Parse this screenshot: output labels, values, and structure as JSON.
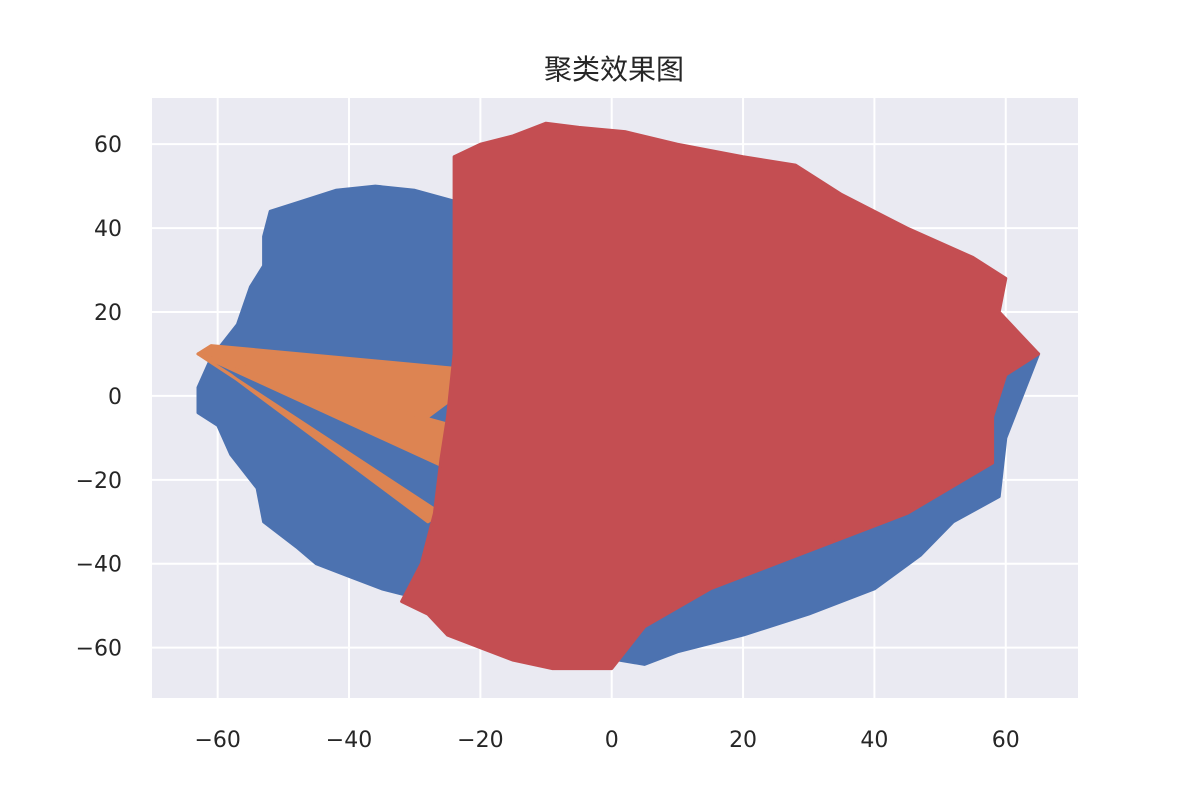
{
  "chart_data": {
    "type": "area",
    "title": "聚类效果图",
    "xlabel": "",
    "ylabel": "",
    "xlim": [
      -70,
      71
    ],
    "ylim": [
      -72,
      71
    ],
    "grid": true,
    "style": "seaborn-darkgrid",
    "x_ticks": [
      -60,
      -40,
      -20,
      0,
      20,
      40,
      60
    ],
    "y_ticks": [
      -60,
      -40,
      -20,
      0,
      20,
      40,
      60
    ],
    "x_tick_labels": [
      "−60",
      "−40",
      "−20",
      "0",
      "20",
      "40",
      "60"
    ],
    "y_tick_labels": [
      "−60",
      "−40",
      "−20",
      "0",
      "20",
      "40",
      "60"
    ],
    "colors": {
      "background": "#eaeaf2",
      "grid": "#ffffff",
      "cluster_0": "#4c72b0",
      "cluster_1": "#dd8452",
      "cluster_2": "#c44e52"
    },
    "series": [
      {
        "color": "#4c72b0",
        "polygons": [
          [
            [
              -63,
              2
            ],
            [
              -61,
              9
            ],
            [
              -57,
              17
            ],
            [
              -55,
              26
            ],
            [
              -53,
              31
            ],
            [
              -53,
              38
            ],
            [
              -52,
              44
            ],
            [
              -48,
              46
            ],
            [
              -42,
              49
            ],
            [
              -36,
              50
            ],
            [
              -30,
              49
            ],
            [
              -23,
              46
            ],
            [
              -15,
              44
            ],
            [
              0,
              42
            ],
            [
              20,
              38
            ],
            [
              40,
              28
            ],
            [
              55,
              20
            ],
            [
              62,
              14
            ],
            [
              65,
              10
            ],
            [
              63,
              2
            ],
            [
              60,
              -10
            ],
            [
              59,
              -24
            ],
            [
              52,
              -30
            ],
            [
              47,
              -38
            ],
            [
              40,
              -46
            ],
            [
              30,
              -52
            ],
            [
              20,
              -57
            ],
            [
              10,
              -61
            ],
            [
              5,
              -64
            ],
            [
              -10,
              -60
            ],
            [
              -25,
              -50
            ],
            [
              -35,
              -46
            ],
            [
              -40,
              -43
            ],
            [
              -45,
              -40
            ],
            [
              -48,
              -36
            ],
            [
              -53,
              -30
            ],
            [
              -54,
              -22
            ],
            [
              -58,
              -14
            ],
            [
              -60,
              -7
            ],
            [
              -63,
              -4
            ]
          ]
        ]
      },
      {
        "color": "#dd8452",
        "polygons": [
          [
            [
              -63,
              10
            ],
            [
              -61,
              12
            ],
            [
              -20,
              6
            ],
            [
              -22,
              2
            ],
            [
              -28,
              -5
            ]
          ],
          [
            [
              -63,
              10
            ],
            [
              -57,
              7
            ],
            [
              -22,
              -8
            ],
            [
              -24,
              -18
            ]
          ],
          [
            [
              -63,
              10
            ],
            [
              -58,
              5
            ],
            [
              -28,
              -30
            ],
            [
              -26,
              -28
            ]
          ]
        ]
      },
      {
        "color": "#c44e52",
        "polygons": [
          [
            [
              -24,
              57
            ],
            [
              -20,
              60
            ],
            [
              -15,
              62
            ],
            [
              -10,
              65
            ],
            [
              -5,
              64
            ],
            [
              2,
              63
            ],
            [
              10,
              60
            ],
            [
              20,
              57
            ],
            [
              28,
              55
            ],
            [
              35,
              48
            ],
            [
              45,
              40
            ],
            [
              55,
              33
            ],
            [
              60,
              28
            ],
            [
              59,
              20
            ],
            [
              62,
              15
            ],
            [
              65,
              10
            ],
            [
              60,
              5
            ],
            [
              58,
              -5
            ],
            [
              58,
              -16
            ],
            [
              45,
              -28
            ],
            [
              30,
              -37
            ],
            [
              15,
              -46
            ],
            [
              5,
              -55
            ],
            [
              0,
              -65
            ],
            [
              -3,
              -65
            ],
            [
              -9,
              -65
            ],
            [
              -15,
              -63
            ],
            [
              -20,
              -60
            ],
            [
              -25,
              -57
            ],
            [
              -28,
              -52
            ],
            [
              -32,
              -49
            ],
            [
              -29,
              -40
            ],
            [
              -27,
              -28
            ],
            [
              -26,
              -15
            ],
            [
              -25,
              -5
            ],
            [
              -24,
              10
            ],
            [
              -24,
              30
            ],
            [
              -24,
              45
            ]
          ]
        ]
      }
    ]
  }
}
